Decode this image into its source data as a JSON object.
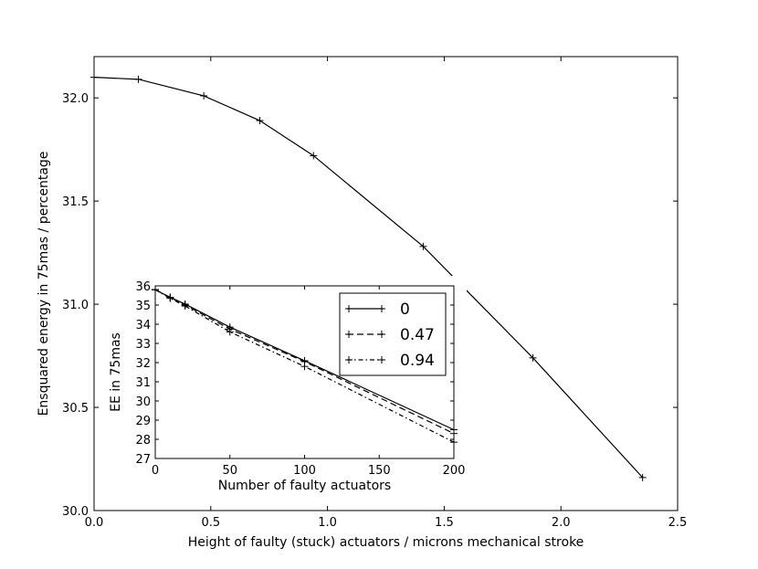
{
  "chart_data": [
    {
      "type": "line",
      "title": "",
      "xlabel": "Height of faulty (stuck) actuators / microns mechanical stroke",
      "ylabel": "Ensquared energy in 75mas / percentage",
      "xlim": [
        0.0,
        2.5
      ],
      "ylim": [
        30.0,
        32.2
      ],
      "xticks": [
        "0.0",
        "0.5",
        "1.0",
        "1.5",
        "2.0",
        "2.5"
      ],
      "yticks": [
        "30.0",
        "30.5",
        "31.0",
        "31.5",
        "32.0"
      ],
      "grid": false,
      "series": [
        {
          "line_color": "#000000",
          "marker": "plus",
          "x": [
            0.0,
            0.19,
            0.47,
            0.71,
            0.94,
            1.41,
            1.88,
            2.35
          ],
          "y": [
            32.1,
            32.09,
            32.01,
            31.89,
            31.72,
            31.28,
            30.74,
            30.16
          ]
        }
      ]
    },
    {
      "type": "line",
      "title": "",
      "xlabel": "Number of faulty actuators",
      "ylabel": "EE in 75mas",
      "xlim": [
        0,
        200
      ],
      "ylim": [
        27,
        36
      ],
      "xticks": [
        "0",
        "50",
        "100",
        "150",
        "200"
      ],
      "yticks": [
        "27",
        "28",
        "29",
        "30",
        "31",
        "32",
        "33",
        "34",
        "35",
        "36"
      ],
      "grid": false,
      "legend_position": "top-right",
      "series": [
        {
          "name": "0",
          "dash": "solid",
          "x": [
            0,
            10,
            20,
            50,
            100,
            200
          ],
          "y": [
            35.8,
            35.4,
            35.05,
            33.85,
            32.1,
            28.5
          ]
        },
        {
          "name": "0.47",
          "dash": "dashed",
          "x": [
            0,
            10,
            20,
            50,
            100,
            200
          ],
          "y": [
            35.8,
            35.4,
            35.0,
            33.75,
            32.05,
            28.3
          ]
        },
        {
          "name": "0.94",
          "dash": "dashdot",
          "x": [
            0,
            10,
            20,
            50,
            100,
            200
          ],
          "y": [
            35.8,
            35.35,
            34.95,
            33.6,
            31.8,
            27.85
          ]
        }
      ]
    }
  ]
}
